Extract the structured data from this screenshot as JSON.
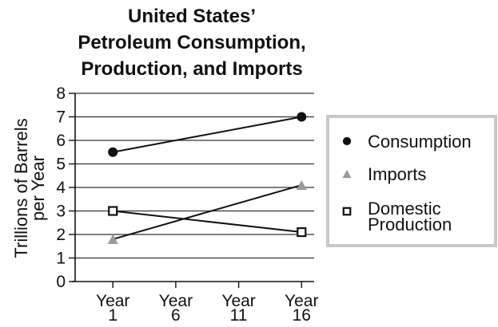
{
  "chart_data": {
    "type": "line",
    "title": [
      "United States’",
      "Petroleum Consumption,",
      "Production, and Imports"
    ],
    "ylabel": [
      "Trillions of Barrels",
      "per Year"
    ],
    "xlabel": "",
    "x": [
      1,
      16
    ],
    "x_ticks": [
      {
        "value": 1,
        "label": [
          "Year",
          "1"
        ]
      },
      {
        "value": 6,
        "label": [
          "Year",
          "6"
        ]
      },
      {
        "value": 11,
        "label": [
          "Year",
          "11"
        ]
      },
      {
        "value": 16,
        "label": [
          "Year",
          "16"
        ]
      }
    ],
    "xlim": [
      -2,
      17
    ],
    "ylim": [
      0,
      8
    ],
    "y_ticks": [
      0,
      1,
      2,
      3,
      4,
      5,
      6,
      7,
      8
    ],
    "grid": "horizontal",
    "legend_position": "right",
    "series": [
      {
        "name": "Consumption",
        "marker": "filled-circle",
        "color": "#111111",
        "values": [
          5.5,
          7.0
        ]
      },
      {
        "name": "Imports",
        "marker": "gray-triangle",
        "color": "#999999",
        "values": [
          1.8,
          4.1
        ]
      },
      {
        "name": "Domestic Production",
        "legend_lines": [
          "Domestic",
          "Production"
        ],
        "marker": "open-square",
        "color": "#111111",
        "values": [
          3.0,
          2.1
        ]
      }
    ]
  }
}
